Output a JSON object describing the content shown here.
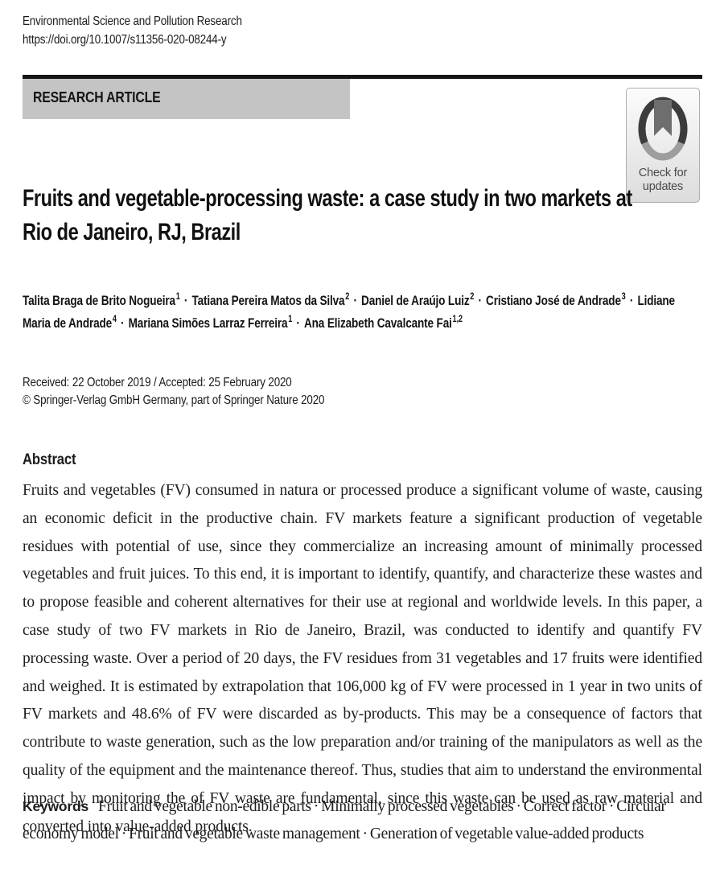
{
  "header": {
    "journal_name": "Environmental Science and Pollution Research",
    "doi": "https://doi.org/10.1007/s11356-020-08244-y",
    "article_type": "RESEARCH ARTICLE"
  },
  "crossmark_badge": {
    "line1": "Check for",
    "line2": "updates"
  },
  "title": "Fruits and vegetable-processing waste: a case study in two markets at Rio de Janeiro, RJ, Brazil",
  "authors": {
    "separator": "·",
    "items": [
      {
        "name": "Talita Braga de Brito Nogueira",
        "sup": "1"
      },
      {
        "name": "Tatiana Pereira Matos da Silva",
        "sup": "2"
      },
      {
        "name": "Daniel de Araújo Luiz",
        "sup": "2"
      },
      {
        "name": "Cristiano José de Andrade",
        "sup": "3"
      },
      {
        "name": "Lidiane Maria de Andrade",
        "sup": "4"
      },
      {
        "name": "Mariana Simões Larraz Ferreira",
        "sup": "1"
      },
      {
        "name": "Ana Elizabeth Cavalcante Fai",
        "sup": "1,2"
      }
    ]
  },
  "dates": {
    "received": "Received: 22 October 2019 / Accepted: 25 February 2020",
    "copyright": "© Springer-Verlag GmbH Germany, part of Springer Nature 2020"
  },
  "abstract": {
    "heading": "Abstract",
    "text": "Fruits and vegetables (FV) consumed in natura or processed produce a significant volume of waste, causing an economic deficit in the productive chain. FV markets feature a significant production of vegetable residues with potential of use, since they commercialize an increasing amount of minimally processed vegetables and fruit juices. To this end, it is important to identify, quantify, and characterize these wastes and to propose feasible and coherent alternatives for their use at regional and worldwide levels. In this paper, a case study of two FV markets in Rio de Janeiro, Brazil, was conducted to identify and quantify FV processing waste. Over a period of 20 days, the FV residues from 31 vegetables and 17 fruits were identified and weighed. It is estimated by extrapolation that 106,000 kg of FV were processed in 1 year in two units of FV markets and 48.6% of FV were discarded as by-products. This may be a consequence of factors that contribute to waste generation, such as the low preparation and/or training of the manipulators as well as the quality of the equipment and the maintenance thereof. Thus, studies that aim to understand the environmental impact by monitoring the of FV waste are fundamental, since this waste can be used as raw material and converted into value-added products."
  },
  "keywords": {
    "label": "Keywords",
    "separator": "·",
    "items": [
      "Fruit and vegetable non-edible parts",
      "Minimally processed vegetables",
      "Correct factor",
      "Circular economy model",
      "Fruit and vegetable waste management",
      "Generation of vegetable value-added products"
    ]
  },
  "colors": {
    "article_type_bar_background": "#c4c4c4",
    "top_rule": "#161616",
    "body_text": "#1b1b1b",
    "badge_border": "#aeaeae",
    "badge_text": "#4a4a4a",
    "crossmark_ring_dark": "#3c3c3c",
    "crossmark_ring_light": "#9d9d9d",
    "crossmark_ribbon": "#6e6e6e"
  }
}
